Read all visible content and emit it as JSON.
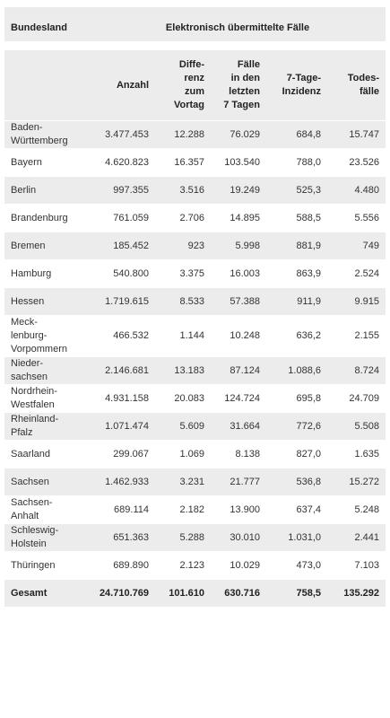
{
  "header": {
    "region": "Bundesland",
    "group": "Elektronisch übermittelte Fälle"
  },
  "columns": [
    [
      "Anzahl"
    ],
    [
      "Diffe-",
      "renz",
      "zum",
      "Vortag"
    ],
    [
      "Fälle",
      "in den",
      "letzten",
      "7 Tagen"
    ],
    [
      "7-Tage-",
      "Inzidenz"
    ],
    [
      "Todes-",
      "fälle"
    ]
  ],
  "rows": [
    {
      "state": [
        "Baden-",
        "Württemberg"
      ],
      "values": [
        "3.477.453",
        "12.288",
        "76.029",
        "684,8",
        "15.747"
      ]
    },
    {
      "state": [
        "Bayern"
      ],
      "values": [
        "4.620.823",
        "16.357",
        "103.540",
        "788,0",
        "23.526"
      ]
    },
    {
      "state": [
        "Berlin"
      ],
      "values": [
        "997.355",
        "3.516",
        "19.249",
        "525,3",
        "4.480"
      ]
    },
    {
      "state": [
        "Brandenburg"
      ],
      "values": [
        "761.059",
        "2.706",
        "14.895",
        "588,5",
        "5.556"
      ]
    },
    {
      "state": [
        "Bremen"
      ],
      "values": [
        "185.452",
        "923",
        "5.998",
        "881,9",
        "749"
      ]
    },
    {
      "state": [
        "Hamburg"
      ],
      "values": [
        "540.800",
        "3.375",
        "16.003",
        "863,9",
        "2.524"
      ]
    },
    {
      "state": [
        "Hessen"
      ],
      "values": [
        "1.719.615",
        "8.533",
        "57.388",
        "911,9",
        "9.915"
      ]
    },
    {
      "state": [
        "Meck-",
        "lenburg-",
        "Vorpommern"
      ],
      "values": [
        "466.532",
        "1.144",
        "10.248",
        "636,2",
        "2.155"
      ]
    },
    {
      "state": [
        "Nieder-",
        "sachsen"
      ],
      "values": [
        "2.146.681",
        "13.183",
        "87.124",
        "1.088,6",
        "8.724"
      ]
    },
    {
      "state": [
        "Nordrhein-",
        "Westfalen"
      ],
      "values": [
        "4.931.158",
        "20.083",
        "124.724",
        "695,8",
        "24.709"
      ]
    },
    {
      "state": [
        "Rheinland-",
        "Pfalz"
      ],
      "values": [
        "1.071.474",
        "5.609",
        "31.664",
        "772,6",
        "5.508"
      ]
    },
    {
      "state": [
        "Saarland"
      ],
      "values": [
        "299.067",
        "1.069",
        "8.138",
        "827,0",
        "1.635"
      ]
    },
    {
      "state": [
        "Sachsen"
      ],
      "values": [
        "1.462.933",
        "3.231",
        "21.777",
        "536,8",
        "15.272"
      ]
    },
    {
      "state": [
        "Sachsen-",
        "Anhalt"
      ],
      "values": [
        "689.114",
        "2.182",
        "13.900",
        "637,4",
        "5.248"
      ]
    },
    {
      "state": [
        "Schleswig-",
        "Holstein"
      ],
      "values": [
        "651.363",
        "5.288",
        "30.010",
        "1.031,0",
        "2.441"
      ]
    },
    {
      "state": [
        "Thüringen"
      ],
      "values": [
        "689.890",
        "2.123",
        "10.029",
        "473,0",
        "7.103"
      ]
    }
  ],
  "total": {
    "label": "Gesamt",
    "values": [
      "24.710.769",
      "101.610",
      "630.716",
      "758,5",
      "135.292"
    ]
  }
}
